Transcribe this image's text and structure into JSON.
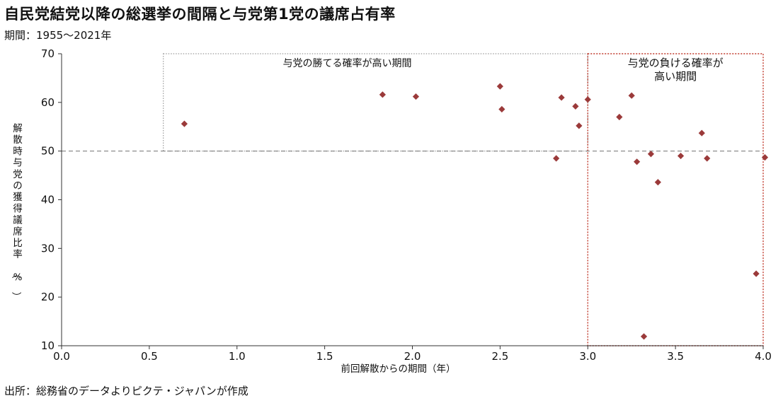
{
  "title": "自民党結党以降の総選挙の間隔と与党第1党の議席占有率",
  "subtitle": "期間：1955～2021年",
  "source": "出所：総務省のデータよりピクテ・ジャパンが作成",
  "colors": {
    "marker": "#9b3a3a",
    "high_box": "#c0392b",
    "low_box": "#9a9a9a",
    "reference_line": "#808080"
  },
  "chart_data": {
    "type": "scatter",
    "title": "自民党結党以降の総選挙の間隔と与党第1党の議席占有率",
    "xlabel": "前回解散からの期間（年）",
    "ylabel": "解散時与党の獲得議席比率（%）",
    "xlim": [
      0,
      4.0
    ],
    "ylim": [
      10,
      70
    ],
    "xticks": [
      0.0,
      0.5,
      1.0,
      1.5,
      2.0,
      2.5,
      3.0,
      3.5,
      4.0
    ],
    "xtick_labels": [
      "0.0",
      "0.5",
      "1.0",
      "1.5",
      "2.0",
      "2.5",
      "3.0",
      "3.5",
      "4.0"
    ],
    "yticks": [
      10,
      20,
      30,
      40,
      50,
      60,
      70
    ],
    "ytick_labels": [
      "10",
      "20",
      "30",
      "40",
      "50",
      "60",
      "70"
    ],
    "grid": false,
    "reference_line_y": 50,
    "annotations": [
      {
        "text": "与党の勝てる確率が高い期間",
        "x_range": [
          0.58,
          3.0
        ],
        "y_range": [
          50,
          70
        ],
        "style": "dotted-gray"
      },
      {
        "text": "与党の負ける確率が高い期間",
        "x_range": [
          3.0,
          4.0
        ],
        "y_range": [
          10,
          70
        ],
        "style": "dotted-red"
      }
    ],
    "points": [
      {
        "x": 0.7,
        "y": 55.6
      },
      {
        "x": 1.83,
        "y": 61.6
      },
      {
        "x": 2.02,
        "y": 61.2
      },
      {
        "x": 2.5,
        "y": 63.3
      },
      {
        "x": 2.51,
        "y": 58.6
      },
      {
        "x": 2.82,
        "y": 48.5
      },
      {
        "x": 2.85,
        "y": 61.0
      },
      {
        "x": 2.93,
        "y": 59.2
      },
      {
        "x": 2.95,
        "y": 55.2
      },
      {
        "x": 3.0,
        "y": 60.6
      },
      {
        "x": 3.18,
        "y": 57.0
      },
      {
        "x": 3.25,
        "y": 61.4
      },
      {
        "x": 3.28,
        "y": 47.8
      },
      {
        "x": 3.32,
        "y": 11.9
      },
      {
        "x": 3.36,
        "y": 49.4
      },
      {
        "x": 3.4,
        "y": 43.6
      },
      {
        "x": 3.53,
        "y": 49.0
      },
      {
        "x": 3.65,
        "y": 53.7
      },
      {
        "x": 3.68,
        "y": 48.5
      },
      {
        "x": 3.96,
        "y": 24.8
      },
      {
        "x": 4.01,
        "y": 48.7
      }
    ]
  }
}
